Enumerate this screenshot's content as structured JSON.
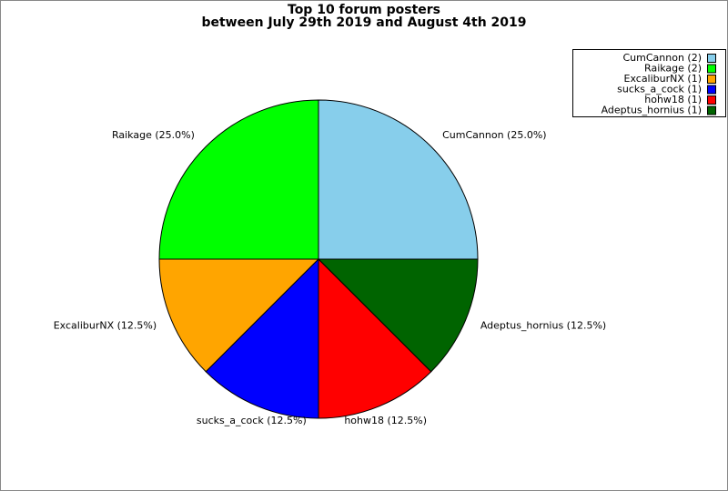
{
  "chart_data": {
    "type": "pie",
    "title": "Top 10 forum posters",
    "subtitle": "between July 29th 2019 and August 4th 2019",
    "categories": [
      "CumCannon (2)",
      "Raikage (2)",
      "ExcaliburNX (1)",
      "sucks_a_cock (1)",
      "hohw18 (1)",
      "Adeptus_hornius (1)"
    ],
    "values": [
      25.0,
      25.0,
      12.5,
      12.5,
      12.5,
      12.5
    ],
    "value_labels": [
      "CumCannon (25.0%)",
      "Raikage (25.0%)",
      "ExcaliburNX (12.5%)",
      "sucks_a_cock (12.5%)",
      "hohw18 (12.5%)",
      "Adeptus_hornius (12.5%)"
    ],
    "colors": [
      "#87ceeb",
      "#00ff00",
      "#ffa500",
      "#0000ff",
      "#ff0000",
      "#006400"
    ],
    "legend": "upper right"
  }
}
